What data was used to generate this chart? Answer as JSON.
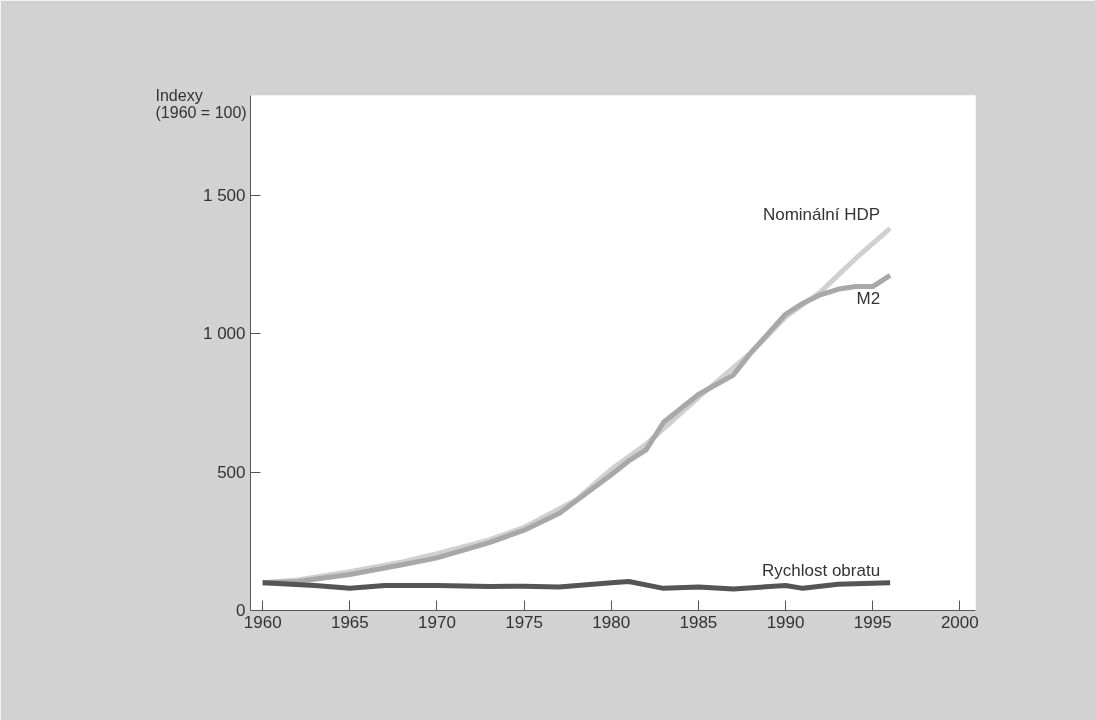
{
  "chart_data": {
    "type": "line",
    "ylabel": "Indexy\n(1960 = 100)",
    "xlim": [
      1959.3,
      2000.9
    ],
    "ylim": [
      0,
      1860
    ],
    "xticks": [
      1960,
      1965,
      1970,
      1975,
      1980,
      1985,
      1990,
      1995,
      2000
    ],
    "yticks": [
      0,
      500,
      {
        "value": 1000,
        "label": "1 000"
      },
      {
        "value": 1500,
        "label": "1 500"
      }
    ],
    "grid": false,
    "series": [
      {
        "name": "Nominální HDP",
        "color": "#d0d0d0",
        "x": [
          1960,
          1962,
          1965,
          1968,
          1970,
          1973,
          1975,
          1978,
          1980,
          1982,
          1985,
          1988,
          1990,
          1992,
          1994,
          1996
        ],
        "values": [
          100,
          110,
          140,
          175,
          205,
          255,
          300,
          400,
          510,
          600,
          770,
          930,
          1060,
          1150,
          1270,
          1380
        ]
      },
      {
        "name": "M2",
        "color": "#a8a8a8",
        "x": [
          1960,
          1962,
          1965,
          1968,
          1970,
          1973,
          1975,
          1977,
          1980,
          1981,
          1982,
          1983,
          1985,
          1987,
          1988,
          1989,
          1990,
          1991,
          1992,
          1993,
          1994,
          1995,
          1996
        ],
        "values": [
          100,
          105,
          130,
          165,
          190,
          245,
          290,
          350,
          490,
          540,
          580,
          680,
          780,
          850,
          930,
          1000,
          1070,
          1110,
          1140,
          1160,
          1170,
          1170,
          1210
        ]
      },
      {
        "name": "Rychlost obratu",
        "color": "#555555",
        "x": [
          1960,
          1963,
          1965,
          1967,
          1970,
          1973,
          1975,
          1977,
          1980,
          1981,
          1983,
          1985,
          1987,
          1990,
          1991,
          1993,
          1996
        ],
        "values": [
          100,
          90,
          80,
          90,
          90,
          87,
          88,
          85,
          100,
          105,
          80,
          85,
          78,
          90,
          80,
          95,
          100
        ]
      }
    ]
  }
}
